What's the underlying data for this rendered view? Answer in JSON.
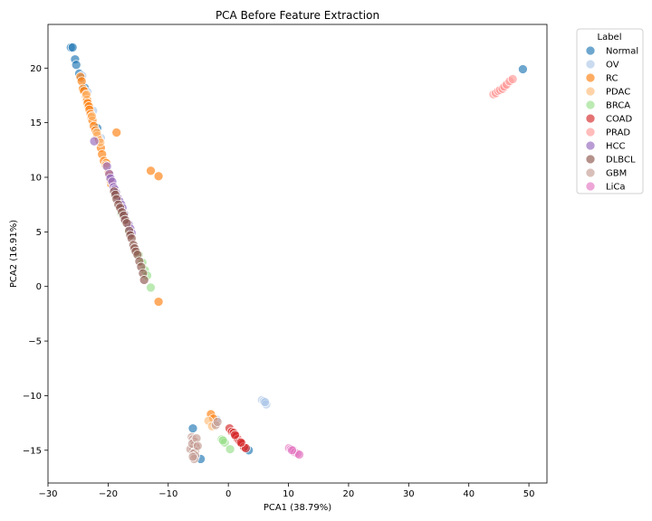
{
  "chart_data": {
    "type": "scatter",
    "title": "PCA Before Feature Extraction",
    "xlabel": "PCA1 (38.79%)",
    "ylabel": "PCA2 (16.91%)",
    "xlim": [
      -30,
      53
    ],
    "ylim": [
      -18,
      24
    ],
    "xticks": [
      -30,
      -20,
      -10,
      0,
      10,
      20,
      30,
      40,
      50
    ],
    "yticks": [
      -15,
      -10,
      -5,
      0,
      5,
      10,
      15,
      20
    ],
    "xtick_labels": [
      "−30",
      "−20",
      "−10",
      "0",
      "10",
      "20",
      "30",
      "40",
      "50"
    ],
    "ytick_labels": [
      "−15",
      "−10",
      "−5",
      "0",
      "5",
      "10",
      "15",
      "20"
    ],
    "grid": false,
    "legend": {
      "title": "Label",
      "placement": "outside-top-right"
    },
    "series": [
      {
        "name": "Normal",
        "color": "#1f77b4",
        "points": [
          [
            -26.2,
            21.9
          ],
          [
            -25.9,
            21.9
          ],
          [
            -25.5,
            20.8
          ],
          [
            -25.3,
            20.3
          ],
          [
            -24.8,
            19.5
          ],
          [
            -24.5,
            19.1
          ],
          [
            -23.9,
            18.2
          ],
          [
            -21.8,
            14.5
          ],
          [
            -5.9,
            -13
          ],
          [
            -4.6,
            -15.8
          ],
          [
            3.4,
            -15
          ],
          [
            49,
            19.9
          ]
        ]
      },
      {
        "name": "OV",
        "color": "#aec7e8",
        "points": [
          [
            -24.3,
            19.3
          ],
          [
            -23.4,
            17.8
          ],
          [
            -22.5,
            16.1
          ],
          [
            -21.2,
            13.6
          ],
          [
            -2.2,
            -12.5
          ],
          [
            -1.9,
            -12.2
          ],
          [
            5.6,
            -10.4
          ],
          [
            5.9,
            -10.5
          ],
          [
            6.3,
            -10.8
          ],
          [
            6.1,
            -10.6
          ]
        ]
      },
      {
        "name": "RC",
        "color": "#ff7f0e",
        "points": [
          [
            -24.6,
            19.2
          ],
          [
            -24.4,
            18.8
          ],
          [
            -24.2,
            18.1
          ],
          [
            -24,
            17.9
          ],
          [
            -23.7,
            17.5
          ],
          [
            -23.5,
            17.1
          ],
          [
            -23.4,
            16.8
          ],
          [
            -23.2,
            16.5
          ],
          [
            -23.1,
            16.2
          ],
          [
            -22.9,
            15.8
          ],
          [
            -22.8,
            15.5
          ],
          [
            -22.6,
            15.2
          ],
          [
            -22.4,
            14.7
          ],
          [
            -22.1,
            14.3
          ],
          [
            -21.8,
            13.8
          ],
          [
            -21.5,
            13.4
          ],
          [
            -21.2,
            12.7
          ],
          [
            -21,
            12.1
          ],
          [
            -20.7,
            11.5
          ],
          [
            -20.3,
            11.3
          ],
          [
            -19.9,
            10.4
          ],
          [
            -19.5,
            9.4
          ],
          [
            -18.6,
            14.1
          ],
          [
            -12.9,
            10.6
          ],
          [
            -11.6,
            10.1
          ],
          [
            -11.6,
            -1.4
          ],
          [
            -2.9,
            -11.7
          ],
          [
            -2.5,
            -12.1
          ]
        ]
      },
      {
        "name": "PDAC",
        "color": "#ffbb78",
        "points": [
          [
            -23.6,
            17.6
          ],
          [
            -22.7,
            15.6
          ],
          [
            -21.9,
            14.1
          ],
          [
            -21.3,
            13.2
          ],
          [
            -20.4,
            11.1
          ],
          [
            -19.6,
            9.7
          ],
          [
            -19.1,
            8.9
          ],
          [
            -3.3,
            -12.3
          ],
          [
            -2.7,
            -12.8
          ]
        ]
      },
      {
        "name": "BRCA",
        "color": "#98df8a",
        "points": [
          [
            -17.8,
            6.7
          ],
          [
            -16.5,
            5.1
          ],
          [
            -14.9,
            2.9
          ],
          [
            -14.3,
            2.2
          ],
          [
            -13.9,
            1.5
          ],
          [
            -13.5,
            1
          ],
          [
            -12.9,
            -0.1
          ],
          [
            -1.1,
            -14
          ],
          [
            -0.6,
            -14.3
          ],
          [
            0.3,
            -14.9
          ],
          [
            -0.9,
            -14.1
          ]
        ]
      },
      {
        "name": "COAD",
        "color": "#d62728",
        "points": [
          [
            0.2,
            -13
          ],
          [
            0.6,
            -13.3
          ],
          [
            0.9,
            -13.4
          ],
          [
            1.3,
            -13.7
          ],
          [
            1.6,
            -14
          ],
          [
            1.9,
            -14.2
          ],
          [
            2.3,
            -14.4
          ],
          [
            2.6,
            -14.7
          ],
          [
            2.9,
            -14.8
          ],
          [
            1.1,
            -13.6
          ],
          [
            2.1,
            -14.3
          ]
        ]
      },
      {
        "name": "PRAD",
        "color": "#ff9896",
        "points": [
          [
            44.1,
            17.6
          ],
          [
            44.5,
            17.7
          ],
          [
            44.9,
            17.9
          ],
          [
            45.2,
            18
          ],
          [
            45.6,
            18.1
          ],
          [
            45.9,
            18.3
          ],
          [
            46.3,
            18.5
          ],
          [
            46.8,
            18.8
          ],
          [
            47.3,
            19
          ]
        ]
      },
      {
        "name": "HCC",
        "color": "#9467bd",
        "points": [
          [
            -22.3,
            13.3
          ],
          [
            -20.2,
            11
          ],
          [
            -19.8,
            10.3
          ],
          [
            -19.6,
            9.9
          ],
          [
            -19.3,
            9.6
          ],
          [
            -19.1,
            9.1
          ],
          [
            -18.9,
            8.9
          ],
          [
            -18.7,
            8.6
          ],
          [
            -18.4,
            8.1
          ],
          [
            -18.1,
            7.8
          ],
          [
            -17.8,
            7.5
          ],
          [
            -17.6,
            7.2
          ],
          [
            -17.3,
            6.6
          ],
          [
            -17.1,
            6.1
          ],
          [
            -16.6,
            5.7
          ],
          [
            -16.3,
            5.3
          ],
          [
            -16.1,
            4.9
          ]
        ]
      },
      {
        "name": "DLBCL",
        "color": "#8c564b",
        "points": [
          [
            -19,
            8.7
          ],
          [
            -18.8,
            8.4
          ],
          [
            -18.6,
            8
          ],
          [
            -18.3,
            7.5
          ],
          [
            -18,
            7.2
          ],
          [
            -17.7,
            6.8
          ],
          [
            -17.4,
            6.5
          ],
          [
            -17.2,
            6.1
          ],
          [
            -16.9,
            5.8
          ],
          [
            -16.5,
            5.1
          ],
          [
            -16.3,
            4.7
          ],
          [
            -16.1,
            4.4
          ],
          [
            -15.8,
            3.8
          ],
          [
            -15.6,
            3.5
          ],
          [
            -15.4,
            3.2
          ],
          [
            -15.1,
            2.9
          ],
          [
            -14.8,
            2.3
          ],
          [
            -14.5,
            1.8
          ],
          [
            -14.2,
            1.2
          ],
          [
            -14,
            0.6
          ]
        ]
      },
      {
        "name": "GBM",
        "color": "#c49c94",
        "points": [
          [
            -6.1,
            -13.8
          ],
          [
            -5.9,
            -14
          ],
          [
            -5.7,
            -14.2
          ],
          [
            -5.6,
            -14.5
          ],
          [
            -5.4,
            -14.7
          ],
          [
            -5.8,
            -14.9
          ],
          [
            -6.3,
            -14.9
          ],
          [
            -5.5,
            -15.1
          ],
          [
            -5.8,
            -15.3
          ],
          [
            -5.5,
            -15.5
          ],
          [
            -5.7,
            -15.8
          ],
          [
            -6,
            -14.4
          ],
          [
            -5.3,
            -13.9
          ],
          [
            -5.1,
            -14.6
          ],
          [
            -5.9,
            -15.6
          ],
          [
            -2.1,
            -12.7
          ],
          [
            -1.8,
            -12.4
          ]
        ]
      },
      {
        "name": "LiCa",
        "color": "#e377c2",
        "points": [
          [
            10.1,
            -14.8
          ],
          [
            10.4,
            -14.9
          ],
          [
            10.8,
            -15
          ],
          [
            11.1,
            -15.2
          ],
          [
            11.5,
            -15.3
          ],
          [
            11.8,
            -15.4
          ],
          [
            10.6,
            -15
          ]
        ]
      }
    ]
  }
}
